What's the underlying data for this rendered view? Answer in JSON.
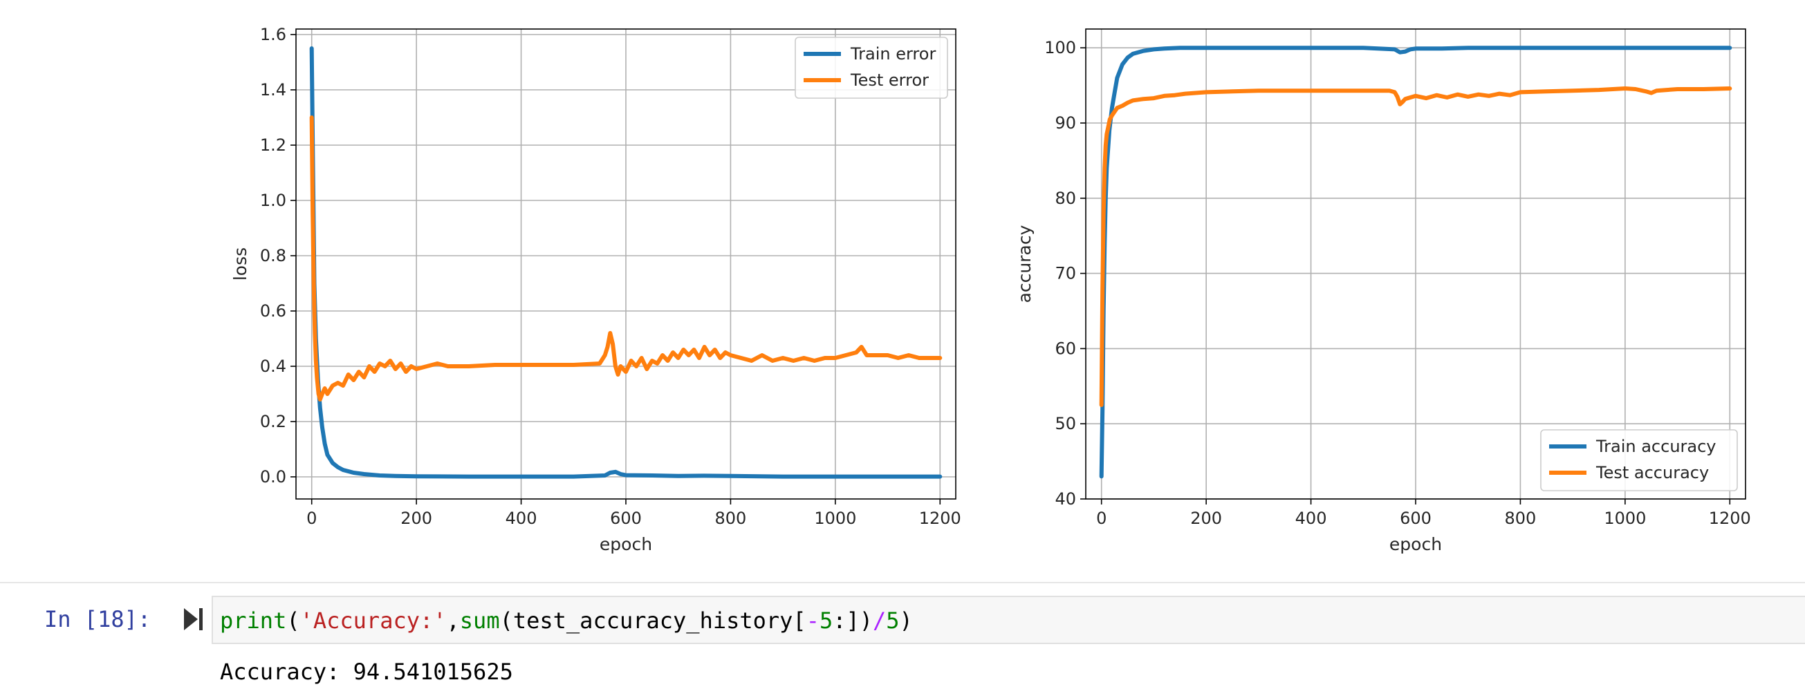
{
  "notebook": {
    "prompt": "In [18]:",
    "code": {
      "fn_print": "print",
      "paren_open": "(",
      "string": "'Accuracy:'",
      "comma": ",",
      "fn_sum": "sum",
      "args_open": "(test_accuracy_history[",
      "minus": "-",
      "num5a": "5",
      "args_close": ":])",
      "div": "/",
      "num5b": "5",
      "paren_close": ")"
    },
    "output": "Accuracy: 94.541015625"
  },
  "colors": {
    "train": "#1f77b4",
    "test": "#ff7f0e",
    "grid": "#b0b0b0",
    "axis": "#000000",
    "prompt": "#303f9f"
  },
  "chart_data": [
    {
      "type": "line",
      "title": "",
      "xlabel": "epoch",
      "ylabel": "loss",
      "xlim": [
        -30,
        1230
      ],
      "ylim": [
        -0.08,
        1.62
      ],
      "xticks": [
        0,
        200,
        400,
        600,
        800,
        1000,
        1200
      ],
      "xtick_labels": [
        "0",
        "200",
        "400",
        "600",
        "800",
        "1000",
        "1200"
      ],
      "yticks": [
        0.0,
        0.2,
        0.4,
        0.6,
        0.8,
        1.0,
        1.2,
        1.4,
        1.6
      ],
      "ytick_labels": [
        "0.0",
        "0.2",
        "0.4",
        "0.6",
        "0.8",
        "1.0",
        "1.2",
        "1.4",
        "1.6"
      ],
      "grid": true,
      "legend": "top-right",
      "series": [
        {
          "name": "Train error",
          "color_key": "train",
          "x": [
            0,
            2,
            5,
            8,
            12,
            16,
            20,
            25,
            30,
            40,
            50,
            60,
            80,
            100,
            130,
            160,
            200,
            300,
            400,
            500,
            560,
            570,
            580,
            590,
            600,
            650,
            700,
            750,
            800,
            900,
            1000,
            1100,
            1200
          ],
          "y": [
            1.55,
            1.2,
            0.7,
            0.5,
            0.35,
            0.25,
            0.18,
            0.12,
            0.08,
            0.05,
            0.035,
            0.025,
            0.015,
            0.01,
            0.005,
            0.003,
            0.002,
            0.001,
            0.001,
            0.001,
            0.005,
            0.015,
            0.018,
            0.01,
            0.006,
            0.005,
            0.003,
            0.004,
            0.003,
            0.001,
            0.001,
            0.001,
            0.001
          ]
        },
        {
          "name": "Test error",
          "color_key": "test",
          "x": [
            0,
            2,
            4,
            6,
            8,
            10,
            13,
            16,
            20,
            25,
            30,
            40,
            50,
            60,
            70,
            80,
            90,
            100,
            110,
            120,
            130,
            140,
            150,
            160,
            170,
            180,
            190,
            200,
            220,
            240,
            260,
            280,
            300,
            350,
            400,
            450,
            500,
            550,
            560,
            565,
            570,
            575,
            580,
            585,
            590,
            600,
            610,
            620,
            630,
            640,
            650,
            660,
            670,
            680,
            690,
            700,
            710,
            720,
            730,
            740,
            750,
            760,
            770,
            780,
            790,
            800,
            820,
            840,
            860,
            880,
            900,
            920,
            940,
            960,
            980,
            1000,
            1020,
            1040,
            1050,
            1060,
            1080,
            1100,
            1120,
            1140,
            1160,
            1180,
            1200
          ],
          "y": [
            1.3,
            0.95,
            0.7,
            0.52,
            0.42,
            0.36,
            0.3,
            0.28,
            0.3,
            0.32,
            0.3,
            0.33,
            0.34,
            0.33,
            0.37,
            0.35,
            0.38,
            0.36,
            0.4,
            0.38,
            0.41,
            0.4,
            0.42,
            0.39,
            0.41,
            0.38,
            0.4,
            0.39,
            0.4,
            0.41,
            0.4,
            0.4,
            0.4,
            0.405,
            0.405,
            0.405,
            0.405,
            0.41,
            0.44,
            0.47,
            0.52,
            0.48,
            0.4,
            0.37,
            0.4,
            0.38,
            0.42,
            0.4,
            0.43,
            0.39,
            0.42,
            0.41,
            0.44,
            0.42,
            0.45,
            0.43,
            0.46,
            0.44,
            0.46,
            0.43,
            0.47,
            0.44,
            0.46,
            0.43,
            0.45,
            0.44,
            0.43,
            0.42,
            0.44,
            0.42,
            0.43,
            0.42,
            0.43,
            0.42,
            0.43,
            0.43,
            0.44,
            0.45,
            0.47,
            0.44,
            0.44,
            0.44,
            0.43,
            0.44,
            0.43,
            0.43,
            0.43
          ]
        }
      ]
    },
    {
      "type": "line",
      "title": "",
      "xlabel": "epoch",
      "ylabel": "accuracy",
      "xlim": [
        -30,
        1230
      ],
      "ylim": [
        40,
        102.5
      ],
      "xticks": [
        0,
        200,
        400,
        600,
        800,
        1000,
        1200
      ],
      "xtick_labels": [
        "0",
        "200",
        "400",
        "600",
        "800",
        "1000",
        "1200"
      ],
      "yticks": [
        40,
        50,
        60,
        70,
        80,
        90,
        100
      ],
      "ytick_labels": [
        "40",
        "50",
        "60",
        "70",
        "80",
        "90",
        "100"
      ],
      "grid": true,
      "legend": "bottom-right",
      "series": [
        {
          "name": "Train accuracy",
          "color_key": "train",
          "x": [
            0,
            2,
            4,
            6,
            8,
            10,
            15,
            20,
            25,
            30,
            40,
            50,
            60,
            80,
            100,
            120,
            150,
            200,
            300,
            400,
            500,
            560,
            570,
            580,
            590,
            600,
            650,
            700,
            800,
            900,
            1000,
            1100,
            1200
          ],
          "y": [
            43,
            52,
            65,
            74,
            80,
            84,
            89,
            92,
            94,
            96,
            97.8,
            98.7,
            99.2,
            99.6,
            99.8,
            99.9,
            100,
            100,
            100,
            100,
            100,
            99.8,
            99.4,
            99.5,
            99.8,
            99.9,
            99.9,
            100,
            100,
            100,
            100,
            100,
            100
          ]
        },
        {
          "name": "Test accuracy",
          "color_key": "test",
          "x": [
            0,
            2,
            4,
            6,
            8,
            10,
            13,
            16,
            20,
            25,
            30,
            40,
            50,
            60,
            80,
            100,
            120,
            140,
            160,
            180,
            200,
            250,
            300,
            400,
            500,
            550,
            560,
            565,
            570,
            575,
            580,
            590,
            600,
            620,
            640,
            660,
            680,
            700,
            720,
            740,
            760,
            780,
            800,
            850,
            900,
            950,
            1000,
            1020,
            1040,
            1050,
            1060,
            1080,
            1100,
            1150,
            1200
          ],
          "y": [
            52.5,
            68,
            78,
            84,
            87,
            88.5,
            89.5,
            90.5,
            91,
            91.5,
            92,
            92.3,
            92.7,
            93,
            93.2,
            93.3,
            93.6,
            93.7,
            93.9,
            94,
            94.1,
            94.2,
            94.3,
            94.3,
            94.3,
            94.3,
            94.1,
            93.5,
            92.5,
            92.8,
            93.2,
            93.4,
            93.6,
            93.3,
            93.7,
            93.4,
            93.8,
            93.5,
            93.8,
            93.6,
            93.9,
            93.7,
            94.1,
            94.2,
            94.3,
            94.4,
            94.6,
            94.5,
            94.2,
            94.0,
            94.3,
            94.4,
            94.5,
            94.5,
            94.6
          ]
        }
      ]
    }
  ]
}
